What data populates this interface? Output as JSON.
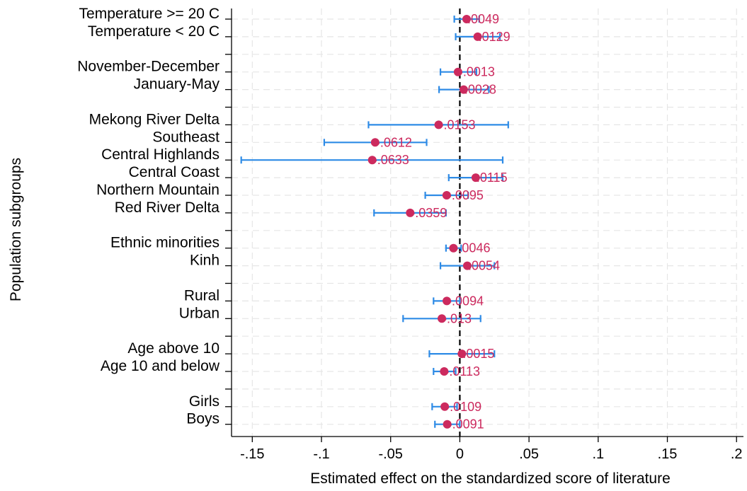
{
  "chart_data": {
    "type": "scatter",
    "subtype": "coefficient-plot",
    "xlabel": "Estimated effect on the standardized score of literature",
    "ylabel": "Population subgroups",
    "xlim": [
      -0.165,
      0.205
    ],
    "xticks": [
      -0.15,
      -0.1,
      -0.05,
      0,
      0.05,
      0.1,
      0.15,
      0.2
    ],
    "xtick_labels": [
      "-.15",
      "-.1",
      "-.05",
      "0",
      ".05",
      ".1",
      ".15",
      ".2"
    ],
    "reference_line_x": 0,
    "grid": true,
    "colors": {
      "point": "#cc2a5e",
      "ci": "#2e8be6",
      "label": "#cc2a5e",
      "grid": "#e6e6e6",
      "reference": "#000000"
    },
    "rows": [
      {
        "label": "Temperature >= 20 C",
        "estimate": 0.0049,
        "value_label": ".0049",
        "ci": [
          -0.004,
          0.014
        ]
      },
      {
        "label": "Temperature < 20 C",
        "estimate": 0.0129,
        "value_label": ".0129",
        "ci": [
          -0.003,
          0.029
        ]
      },
      {
        "label": "",
        "spacer": true
      },
      {
        "label": "November-December",
        "estimate": -0.0013,
        "value_label": "-.0013",
        "ci": [
          -0.014,
          0.012
        ]
      },
      {
        "label": "January-May",
        "estimate": 0.0028,
        "value_label": ".0028",
        "ci": [
          -0.015,
          0.021
        ]
      },
      {
        "label": "",
        "spacer": true
      },
      {
        "label": "Mekong River Delta",
        "estimate": -0.0153,
        "value_label": "-.0153",
        "ci": [
          -0.066,
          0.035
        ]
      },
      {
        "label": "Southeast",
        "estimate": -0.0612,
        "value_label": "-.0612",
        "ci": [
          -0.098,
          -0.024
        ]
      },
      {
        "label": "Central Highlands",
        "estimate": -0.0633,
        "value_label": "-.0633",
        "ci": [
          -0.158,
          0.031
        ]
      },
      {
        "label": "Central Coast",
        "estimate": 0.0115,
        "value_label": ".0115",
        "ci": [
          -0.008,
          0.031
        ]
      },
      {
        "label": "Northern Mountain",
        "estimate": -0.0095,
        "value_label": "-.0095",
        "ci": [
          -0.025,
          0.006
        ]
      },
      {
        "label": "Red River Delta",
        "estimate": -0.0359,
        "value_label": "-.0359",
        "ci": [
          -0.062,
          -0.01
        ]
      },
      {
        "label": "",
        "spacer": true
      },
      {
        "label": "Ethnic minorities",
        "estimate": -0.0046,
        "value_label": "-.0046",
        "ci": [
          -0.01,
          0.001
        ]
      },
      {
        "label": "Kinh",
        "estimate": 0.0054,
        "value_label": ".0054",
        "ci": [
          -0.014,
          0.025
        ]
      },
      {
        "label": "",
        "spacer": true
      },
      {
        "label": "Rural",
        "estimate": -0.0094,
        "value_label": "-.0094",
        "ci": [
          -0.019,
          0.0
        ]
      },
      {
        "label": "Urban",
        "estimate": -0.013,
        "value_label": "-.013",
        "ci": [
          -0.041,
          0.015
        ]
      },
      {
        "label": "",
        "spacer": true
      },
      {
        "label": "Age above 10",
        "estimate": 0.0015,
        "value_label": ".0015",
        "ci": [
          -0.022,
          0.025
        ]
      },
      {
        "label": "Age 10 and below",
        "estimate": -0.0113,
        "value_label": "-.0113",
        "ci": [
          -0.019,
          -0.003
        ]
      },
      {
        "label": "",
        "spacer": true
      },
      {
        "label": "Girls",
        "estimate": -0.0109,
        "value_label": "-.0109",
        "ci": [
          -0.02,
          -0.002
        ]
      },
      {
        "label": "Boys",
        "estimate": -0.0091,
        "value_label": "-.0091",
        "ci": [
          -0.018,
          0.0
        ]
      }
    ]
  }
}
